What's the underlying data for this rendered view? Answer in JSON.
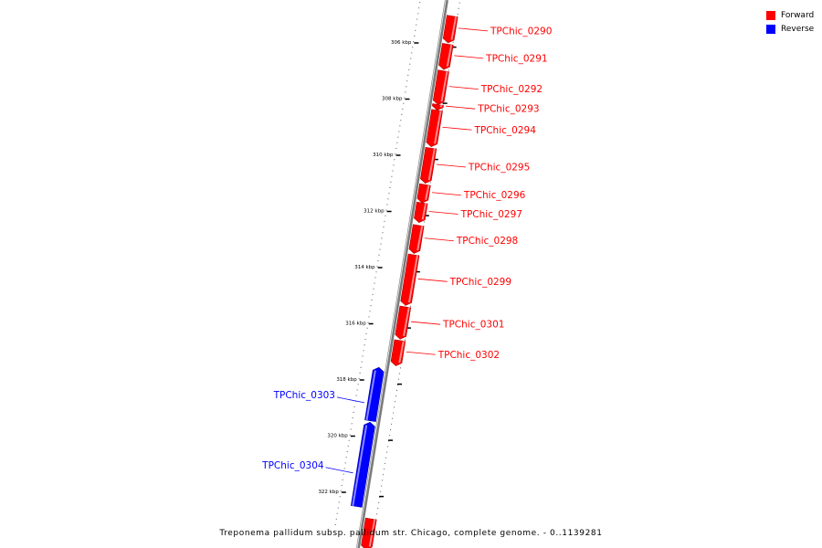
{
  "legend": {
    "forward": {
      "label": "Forward",
      "color": "#ff0000"
    },
    "reverse": {
      "label": "Reverse",
      "color": "#0000ff"
    }
  },
  "axis": {
    "unit": "kbp",
    "ticks": [
      {
        "kbp": 306,
        "label": "306 kbp"
      },
      {
        "kbp": 308,
        "label": "308 kbp"
      },
      {
        "kbp": 310,
        "label": "310 kbp"
      },
      {
        "kbp": 312,
        "label": "312 kbp"
      },
      {
        "kbp": 314,
        "label": "314 kbp"
      },
      {
        "kbp": 316,
        "label": "316 kbp"
      },
      {
        "kbp": 318,
        "label": "318 kbp"
      },
      {
        "kbp": 320,
        "label": "320 kbp"
      },
      {
        "kbp": 322,
        "label": "322 kbp"
      }
    ]
  },
  "genes": [
    {
      "name": "TPChic_0290",
      "strand": "forward",
      "start_kbp": 305.0,
      "end_kbp": 305.95
    },
    {
      "name": "TPChic_0291",
      "strand": "forward",
      "start_kbp": 306.0,
      "end_kbp": 306.9
    },
    {
      "name": "TPChic_0292",
      "strand": "forward",
      "start_kbp": 306.95,
      "end_kbp": 308.15
    },
    {
      "name": "TPChic_0293",
      "strand": "forward",
      "start_kbp": 308.15,
      "end_kbp": 308.35
    },
    {
      "name": "TPChic_0294",
      "strand": "forward",
      "start_kbp": 308.35,
      "end_kbp": 309.65
    },
    {
      "name": "TPChic_0295",
      "strand": "forward",
      "start_kbp": 309.7,
      "end_kbp": 310.95
    },
    {
      "name": "TPChic_0296",
      "strand": "forward",
      "start_kbp": 311.0,
      "end_kbp": 311.65
    },
    {
      "name": "TPChic_0297",
      "strand": "forward",
      "start_kbp": 311.65,
      "end_kbp": 312.35
    },
    {
      "name": "TPChic_0298",
      "strand": "forward",
      "start_kbp": 312.45,
      "end_kbp": 313.45
    },
    {
      "name": "TPChic_0299",
      "strand": "forward",
      "start_kbp": 313.5,
      "end_kbp": 315.3
    },
    {
      "name": "TPChic_0301",
      "strand": "forward",
      "start_kbp": 315.35,
      "end_kbp": 316.5
    },
    {
      "name": "TPChic_0302",
      "strand": "forward",
      "start_kbp": 316.55,
      "end_kbp": 317.45
    },
    {
      "name": "TPChic_0303",
      "strand": "reverse",
      "start_kbp": 317.6,
      "end_kbp": 319.5
    },
    {
      "name": "TPChic_0304",
      "strand": "reverse",
      "start_kbp": 319.55,
      "end_kbp": 322.55
    }
  ],
  "view": {
    "start_kbp": 304.5,
    "end_kbp": 323.3,
    "unlabeled_forward": {
      "start_kbp": 322.9,
      "end_kbp": 324.0
    }
  },
  "caption": "Treponema pallidum subsp. pallidum str. Chicago, complete genome. - 0..1139281"
}
